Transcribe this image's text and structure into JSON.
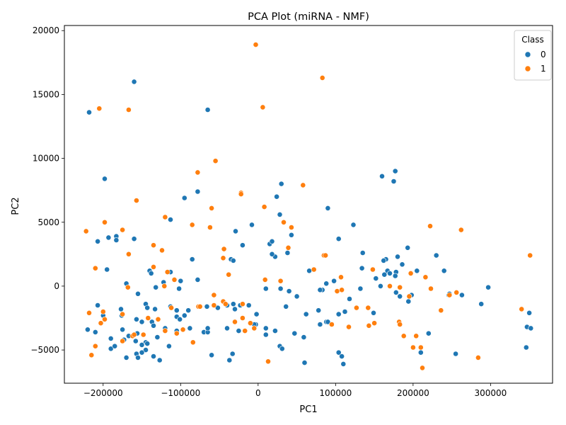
{
  "chart_data": {
    "type": "scatter",
    "title": "PCA Plot (miRNA - NMF)",
    "xlabel": "PC1",
    "ylabel": "PC2",
    "xlim": [
      -250000,
      380000
    ],
    "ylim": [
      -7600,
      20400
    ],
    "xticks": [
      -200000,
      -100000,
      0,
      100000,
      200000,
      300000
    ],
    "xtick_labels": [
      "−200000",
      "−100000",
      "0",
      "100000",
      "200000",
      "300000"
    ],
    "yticks": [
      -5000,
      0,
      5000,
      10000,
      15000,
      20000
    ],
    "ytick_labels": [
      "−5000",
      "0",
      "5000",
      "10000",
      "15000",
      "20000"
    ],
    "grid": false,
    "legend": {
      "title": "Class",
      "position": "top-right"
    },
    "series": [
      {
        "name": "0",
        "color": "#1f77b4",
        "points": [
          [
            -218000,
            13600
          ],
          [
            -160000,
            16000
          ],
          [
            -65000,
            13800
          ],
          [
            -198000,
            8400
          ],
          [
            -95000,
            6900
          ],
          [
            -78000,
            7400
          ],
          [
            30000,
            8000
          ],
          [
            24000,
            7000
          ],
          [
            160000,
            8600
          ],
          [
            177000,
            9000
          ],
          [
            175000,
            8200
          ],
          [
            -113000,
            5200
          ],
          [
            -8000,
            4800
          ],
          [
            -29000,
            4300
          ],
          [
            28000,
            5600
          ],
          [
            43000,
            4000
          ],
          [
            90000,
            6100
          ],
          [
            123000,
            4800
          ],
          [
            104000,
            3700
          ],
          [
            -160000,
            3700
          ],
          [
            -193000,
            3800
          ],
          [
            -183000,
            3900
          ],
          [
            -207000,
            3500
          ],
          [
            -183000,
            3600
          ],
          [
            -20000,
            3200
          ],
          [
            15000,
            3300
          ],
          [
            18000,
            3500
          ],
          [
            38000,
            2600
          ],
          [
            22000,
            2300
          ],
          [
            18000,
            2500
          ],
          [
            -85000,
            2100
          ],
          [
            -35000,
            2100
          ],
          [
            -32000,
            2000
          ],
          [
            135000,
            2600
          ],
          [
            165000,
            2100
          ],
          [
            162000,
            2000
          ],
          [
            180000,
            2300
          ],
          [
            193000,
            3000
          ],
          [
            230000,
            2400
          ],
          [
            -195000,
            1300
          ],
          [
            -140000,
            1200
          ],
          [
            -138000,
            1000
          ],
          [
            -113000,
            1100
          ],
          [
            -100000,
            400
          ],
          [
            -78000,
            500
          ],
          [
            -122000,
            300
          ],
          [
            66000,
            1200
          ],
          [
            98000,
            400
          ],
          [
            88000,
            200
          ],
          [
            83000,
            -300
          ],
          [
            80000,
            -300
          ],
          [
            134000,
            1400
          ],
          [
            148000,
            1300
          ],
          [
            167000,
            1200
          ],
          [
            170000,
            1000
          ],
          [
            178000,
            1100
          ],
          [
            177000,
            800
          ],
          [
            163000,
            900
          ],
          [
            152000,
            600
          ],
          [
            158000,
            0
          ],
          [
            186000,
            1700
          ],
          [
            205000,
            1200
          ],
          [
            240000,
            1200
          ],
          [
            297000,
            -100
          ],
          [
            -170000,
            200
          ],
          [
            -155000,
            -600
          ],
          [
            -102000,
            -200
          ],
          [
            -132000,
            -100
          ],
          [
            10000,
            -200
          ],
          [
            29000,
            -200
          ],
          [
            40000,
            -400
          ],
          [
            50000,
            -800
          ],
          [
            132000,
            -200
          ],
          [
            178000,
            -500
          ],
          [
            183000,
            -800
          ],
          [
            194000,
            -1200
          ],
          [
            198000,
            -700
          ],
          [
            246000,
            -700
          ],
          [
            247000,
            -600
          ],
          [
            263000,
            -700
          ],
          [
            288000,
            -1400
          ],
          [
            -207000,
            -1500
          ],
          [
            -200000,
            -2300
          ],
          [
            -177000,
            -1800
          ],
          [
            -176000,
            -2300
          ],
          [
            -157000,
            -2600
          ],
          [
            -145000,
            -1400
          ],
          [
            -143000,
            -1700
          ],
          [
            -137000,
            -2800
          ],
          [
            -133000,
            -1800
          ],
          [
            -113000,
            -1600
          ],
          [
            -105000,
            -1900
          ],
          [
            -105000,
            -2400
          ],
          [
            -101000,
            -2600
          ],
          [
            -95000,
            -2300
          ],
          [
            -90000,
            -1900
          ],
          [
            -66000,
            -1600
          ],
          [
            -52000,
            -1700
          ],
          [
            -40000,
            -1500
          ],
          [
            -32000,
            -1400
          ],
          [
            -30000,
            -1800
          ],
          [
            -23000,
            -1500
          ],
          [
            -12000,
            -1500
          ],
          [
            -2000,
            -2200
          ],
          [
            -3000,
            -3000
          ],
          [
            36000,
            -1600
          ],
          [
            62000,
            -2200
          ],
          [
            78000,
            -1900
          ],
          [
            88000,
            -2800
          ],
          [
            104000,
            -2200
          ],
          [
            112000,
            -2000
          ],
          [
            118000,
            -1000
          ],
          [
            149000,
            -2100
          ],
          [
            220000,
            -3700
          ],
          [
            -210000,
            -3600
          ],
          [
            -220000,
            -3400
          ],
          [
            -175000,
            -3400
          ],
          [
            -167000,
            -3900
          ],
          [
            -158000,
            -4300
          ],
          [
            -150000,
            -2800
          ],
          [
            -156000,
            -3700
          ],
          [
            -145000,
            -4400
          ],
          [
            -150000,
            -4600
          ],
          [
            -143000,
            -4500
          ],
          [
            -135000,
            -3100
          ],
          [
            -130000,
            -4000
          ],
          [
            -120000,
            -3300
          ],
          [
            -115000,
            -4700
          ],
          [
            -105000,
            -3500
          ],
          [
            -88000,
            -3300
          ],
          [
            -70000,
            -3600
          ],
          [
            -65000,
            -3600
          ],
          [
            -65000,
            -3300
          ],
          [
            -40000,
            -3300
          ],
          [
            -25000,
            -3500
          ],
          [
            -5000,
            -3000
          ],
          [
            10000,
            -3300
          ],
          [
            10000,
            -3800
          ],
          [
            22000,
            -3500
          ],
          [
            28000,
            -4700
          ],
          [
            31000,
            -4900
          ],
          [
            47000,
            -3700
          ],
          [
            59000,
            -4000
          ],
          [
            80000,
            -3000
          ],
          [
            90000,
            -2800
          ],
          [
            -190000,
            -4100
          ],
          [
            -190000,
            -4900
          ],
          [
            -185000,
            -4700
          ],
          [
            -173000,
            -4200
          ],
          [
            -170000,
            -5600
          ],
          [
            -157000,
            -5300
          ],
          [
            -155000,
            -5600
          ],
          [
            -150000,
            -4600
          ],
          [
            -145000,
            -5000
          ],
          [
            -150000,
            -5200
          ],
          [
            -135000,
            -5500
          ],
          [
            -127000,
            -5800
          ],
          [
            -60000,
            -5400
          ],
          [
            -33000,
            -5300
          ],
          [
            -37000,
            -5800
          ],
          [
            60000,
            -6000
          ],
          [
            104000,
            -5200
          ],
          [
            108000,
            -5500
          ],
          [
            110000,
            -6100
          ],
          [
            210000,
            -5200
          ],
          [
            255000,
            -5300
          ],
          [
            346000,
            -4800
          ],
          [
            347000,
            -3200
          ],
          [
            352000,
            -3300
          ],
          [
            350000,
            -2100
          ]
        ]
      },
      {
        "name": "1",
        "color": "#ff7f0e",
        "points": [
          [
            -205000,
            13900
          ],
          [
            -167000,
            13800
          ],
          [
            -3000,
            18900
          ],
          [
            6000,
            14000
          ],
          [
            83000,
            16300
          ],
          [
            -55000,
            9800
          ],
          [
            -78000,
            8900
          ],
          [
            -22000,
            7300
          ],
          [
            -22000,
            7200
          ],
          [
            58000,
            7900
          ],
          [
            -157000,
            6700
          ],
          [
            -60000,
            6100
          ],
          [
            8000,
            6200
          ],
          [
            -198000,
            5000
          ],
          [
            -120000,
            5400
          ],
          [
            -85000,
            4800
          ],
          [
            -62000,
            4600
          ],
          [
            33000,
            5000
          ],
          [
            43000,
            4600
          ],
          [
            222000,
            4700
          ],
          [
            262000,
            4400
          ],
          [
            -175000,
            4400
          ],
          [
            -222000,
            4300
          ],
          [
            -135000,
            3200
          ],
          [
            -124000,
            2800
          ],
          [
            -44000,
            2900
          ],
          [
            39000,
            3000
          ],
          [
            -167000,
            2500
          ],
          [
            -45000,
            2200
          ],
          [
            85000,
            2400
          ],
          [
            87000,
            2400
          ],
          [
            -210000,
            1400
          ],
          [
            -135000,
            1500
          ],
          [
            -117000,
            1100
          ],
          [
            -108000,
            500
          ],
          [
            -38000,
            900
          ],
          [
            9000,
            500
          ],
          [
            29000,
            400
          ],
          [
            72000,
            1300
          ],
          [
            107000,
            700
          ],
          [
            148000,
            1300
          ],
          [
            170000,
            0
          ],
          [
            197000,
            1000
          ],
          [
            216000,
            700
          ],
          [
            -168000,
            -100
          ],
          [
            -121000,
            0
          ],
          [
            -57000,
            -700
          ],
          [
            102000,
            -400
          ],
          [
            108000,
            -300
          ],
          [
            183000,
            -100
          ],
          [
            223000,
            -200
          ],
          [
            247000,
            -700
          ],
          [
            256000,
            -500
          ],
          [
            -200000,
            -2000
          ],
          [
            -203000,
            -2900
          ],
          [
            -198000,
            -2600
          ],
          [
            -175000,
            -2200
          ],
          [
            -142000,
            -2500
          ],
          [
            -129000,
            -2600
          ],
          [
            -112000,
            -1700
          ],
          [
            -77000,
            -1600
          ],
          [
            -75000,
            -1600
          ],
          [
            -57000,
            -1500
          ],
          [
            -45000,
            -1200
          ],
          [
            -42000,
            -1400
          ],
          [
            -20000,
            -1400
          ],
          [
            -20000,
            -2500
          ],
          [
            -10000,
            -2900
          ],
          [
            -5000,
            -3300
          ],
          [
            95000,
            -3000
          ],
          [
            117000,
            -3200
          ],
          [
            127000,
            -1700
          ],
          [
            142000,
            -1700
          ],
          [
            143000,
            -3100
          ],
          [
            150000,
            -2900
          ],
          [
            182000,
            -2800
          ],
          [
            183000,
            -3000
          ],
          [
            195000,
            -800
          ],
          [
            236000,
            -1900
          ],
          [
            340000,
            -1800
          ],
          [
            351000,
            2400
          ],
          [
            -218000,
            -2100
          ],
          [
            -210000,
            -4700
          ],
          [
            -215000,
            -5400
          ],
          [
            -175000,
            -4300
          ],
          [
            -162000,
            -3900
          ],
          [
            -160000,
            -3800
          ],
          [
            -148000,
            -3800
          ],
          [
            -120000,
            -3500
          ],
          [
            -105000,
            -3700
          ],
          [
            -97000,
            -3400
          ],
          [
            -84000,
            -4400
          ],
          [
            -17000,
            -3500
          ],
          [
            -30000,
            -2800
          ],
          [
            13000,
            -5900
          ],
          [
            188000,
            -3900
          ],
          [
            200000,
            -4800
          ],
          [
            204000,
            -3900
          ],
          [
            210000,
            -4800
          ],
          [
            212000,
            -6400
          ],
          [
            284000,
            -5600
          ]
        ]
      }
    ]
  }
}
